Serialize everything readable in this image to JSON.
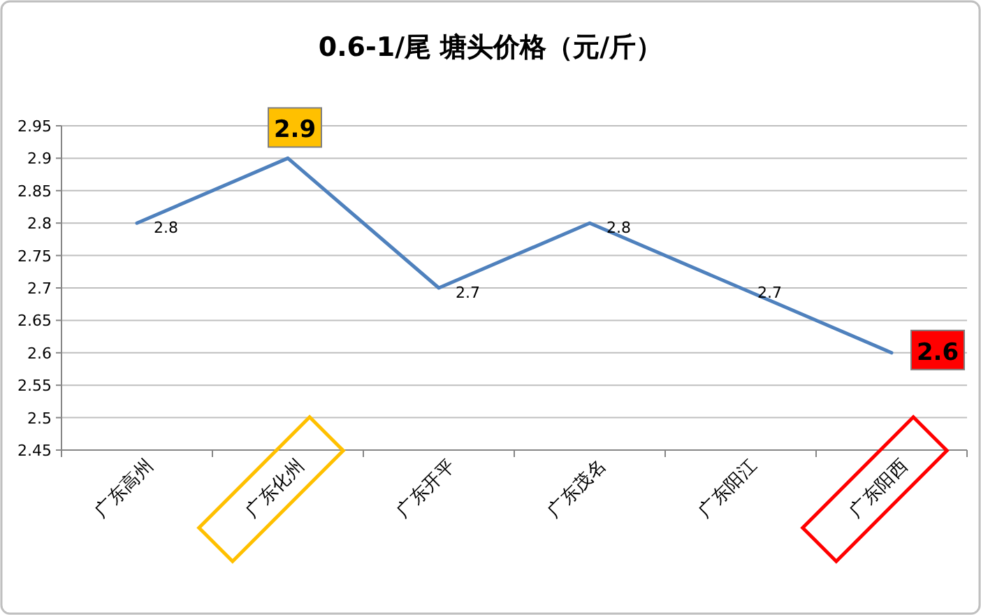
{
  "chart_data": {
    "type": "line",
    "title": "0.6-1/尾  塘头价格（元/斤）",
    "categories": [
      "广东高州",
      "广东化州",
      "广东开平",
      "广东茂名",
      "广东阳江",
      "广东阳西"
    ],
    "values": [
      2.8,
      2.9,
      2.7,
      2.8,
      2.7,
      2.6
    ],
    "color": "#4f81bd",
    "ylim": [
      2.45,
      2.95
    ],
    "yticks": [
      2.45,
      2.5,
      2.55,
      2.6,
      2.65,
      2.7,
      2.75,
      2.8,
      2.85,
      2.9,
      2.95
    ],
    "grid": "y",
    "data_labels": true,
    "marker": "none",
    "line_style": "solid"
  }
}
